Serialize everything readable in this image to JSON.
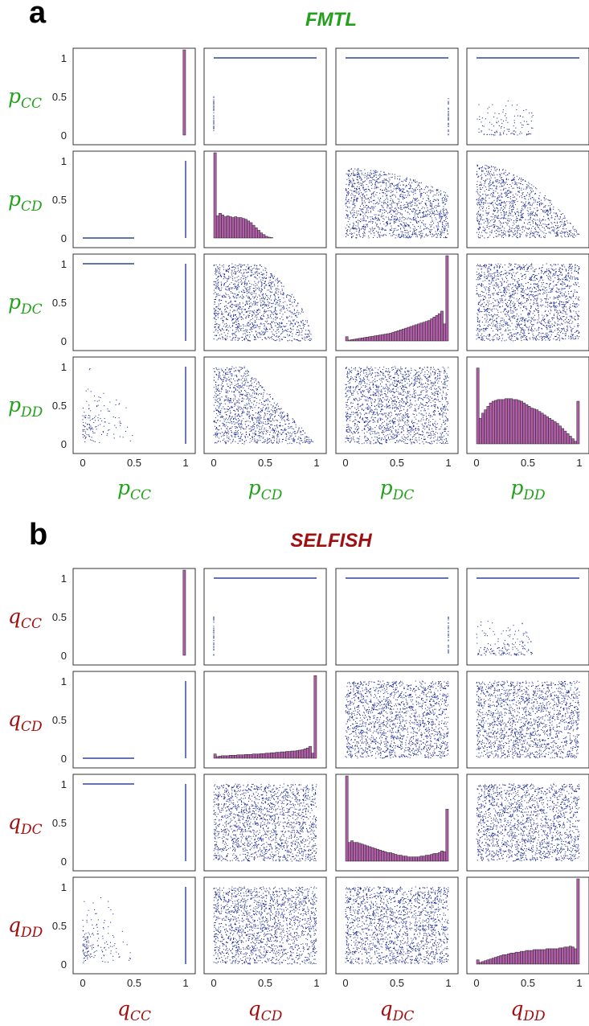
{
  "colors": {
    "points": "#0a1a8c",
    "histogram": "#b05ea8",
    "fmtl": "#23a01c",
    "selfish": "#a01010"
  },
  "chart_data": [
    {
      "type": "scatter",
      "panel_label": "a",
      "title": "FMTL",
      "var_base": "p",
      "variables": [
        "CC",
        "CD",
        "DC",
        "DD"
      ],
      "axis_range": [
        0,
        1
      ],
      "ticks": [
        "0",
        "0.5",
        "1"
      ],
      "diagonal": "histogram",
      "histograms": [
        [
          0,
          0,
          0,
          0,
          0,
          0,
          0,
          0,
          0,
          0,
          0,
          0,
          0,
          0,
          0,
          0,
          0,
          0,
          0,
          0,
          0,
          0,
          0,
          0,
          0,
          0,
          0,
          0,
          0,
          0,
          0,
          0,
          0,
          0,
          0,
          0,
          0,
          0,
          0,
          1.0
        ],
        [
          1.0,
          0.26,
          0.29,
          0.27,
          0.25,
          0.26,
          0.25,
          0.24,
          0.25,
          0.24,
          0.24,
          0.23,
          0.22,
          0.2,
          0.18,
          0.15,
          0.12,
          0.09,
          0.06,
          0.04,
          0.02,
          0.01,
          0.005,
          0,
          0,
          0,
          0,
          0,
          0,
          0,
          0,
          0,
          0,
          0,
          0,
          0,
          0,
          0,
          0,
          0
        ],
        [
          0.05,
          0.01,
          0.015,
          0.02,
          0.025,
          0.03,
          0.035,
          0.04,
          0.045,
          0.05,
          0.055,
          0.06,
          0.065,
          0.07,
          0.075,
          0.08,
          0.085,
          0.09,
          0.1,
          0.11,
          0.12,
          0.13,
          0.14,
          0.15,
          0.16,
          0.17,
          0.18,
          0.19,
          0.2,
          0.21,
          0.22,
          0.23,
          0.24,
          0.26,
          0.28,
          0.3,
          0.32,
          0.35,
          0.2,
          1.0
        ],
        [
          0.89,
          0.3,
          0.36,
          0.4,
          0.44,
          0.48,
          0.5,
          0.51,
          0.52,
          0.52,
          0.52,
          0.53,
          0.53,
          0.53,
          0.52,
          0.52,
          0.51,
          0.5,
          0.48,
          0.46,
          0.44,
          0.42,
          0.41,
          0.4,
          0.38,
          0.36,
          0.34,
          0.32,
          0.3,
          0.28,
          0.26,
          0.24,
          0.21,
          0.18,
          0.15,
          0.12,
          0.09,
          0.06,
          0.03,
          0.5
        ]
      ]
    },
    {
      "type": "scatter",
      "panel_label": "b",
      "title": "SELFISH",
      "var_base": "q",
      "variables": [
        "CC",
        "CD",
        "DC",
        "DD"
      ],
      "axis_range": [
        0,
        1
      ],
      "ticks": [
        "0",
        "0.5",
        "1"
      ],
      "diagonal": "histogram",
      "histograms": [
        [
          0,
          0,
          0,
          0,
          0,
          0,
          0,
          0,
          0,
          0,
          0,
          0,
          0,
          0,
          0,
          0,
          0,
          0,
          0,
          0,
          0,
          0,
          0,
          0,
          0,
          0,
          0,
          0,
          0,
          0,
          0,
          0,
          0,
          0,
          0,
          0,
          0,
          0,
          0,
          1.0
        ],
        [
          0.05,
          0.02,
          0.025,
          0.03,
          0.03,
          0.03,
          0.035,
          0.035,
          0.035,
          0.04,
          0.04,
          0.04,
          0.045,
          0.045,
          0.045,
          0.05,
          0.05,
          0.05,
          0.055,
          0.055,
          0.06,
          0.06,
          0.065,
          0.065,
          0.07,
          0.07,
          0.075,
          0.075,
          0.08,
          0.08,
          0.085,
          0.085,
          0.09,
          0.095,
          0.1,
          0.11,
          0.12,
          0.14,
          0.06,
          0.97
        ],
        [
          1.0,
          0.22,
          0.24,
          0.22,
          0.22,
          0.21,
          0.2,
          0.19,
          0.18,
          0.17,
          0.16,
          0.15,
          0.14,
          0.13,
          0.12,
          0.11,
          0.1,
          0.1,
          0.09,
          0.08,
          0.07,
          0.07,
          0.06,
          0.06,
          0.05,
          0.05,
          0.05,
          0.05,
          0.05,
          0.06,
          0.06,
          0.07,
          0.07,
          0.08,
          0.09,
          0.09,
          0.1,
          0.12,
          0.11,
          0.61
        ],
        [
          0.05,
          0.02,
          0.03,
          0.04,
          0.05,
          0.06,
          0.07,
          0.08,
          0.09,
          0.1,
          0.11,
          0.11,
          0.12,
          0.13,
          0.13,
          0.14,
          0.14,
          0.15,
          0.15,
          0.16,
          0.16,
          0.16,
          0.17,
          0.17,
          0.17,
          0.17,
          0.17,
          0.18,
          0.18,
          0.18,
          0.18,
          0.18,
          0.19,
          0.19,
          0.2,
          0.2,
          0.21,
          0.2,
          0.18,
          1.0
        ]
      ]
    }
  ]
}
